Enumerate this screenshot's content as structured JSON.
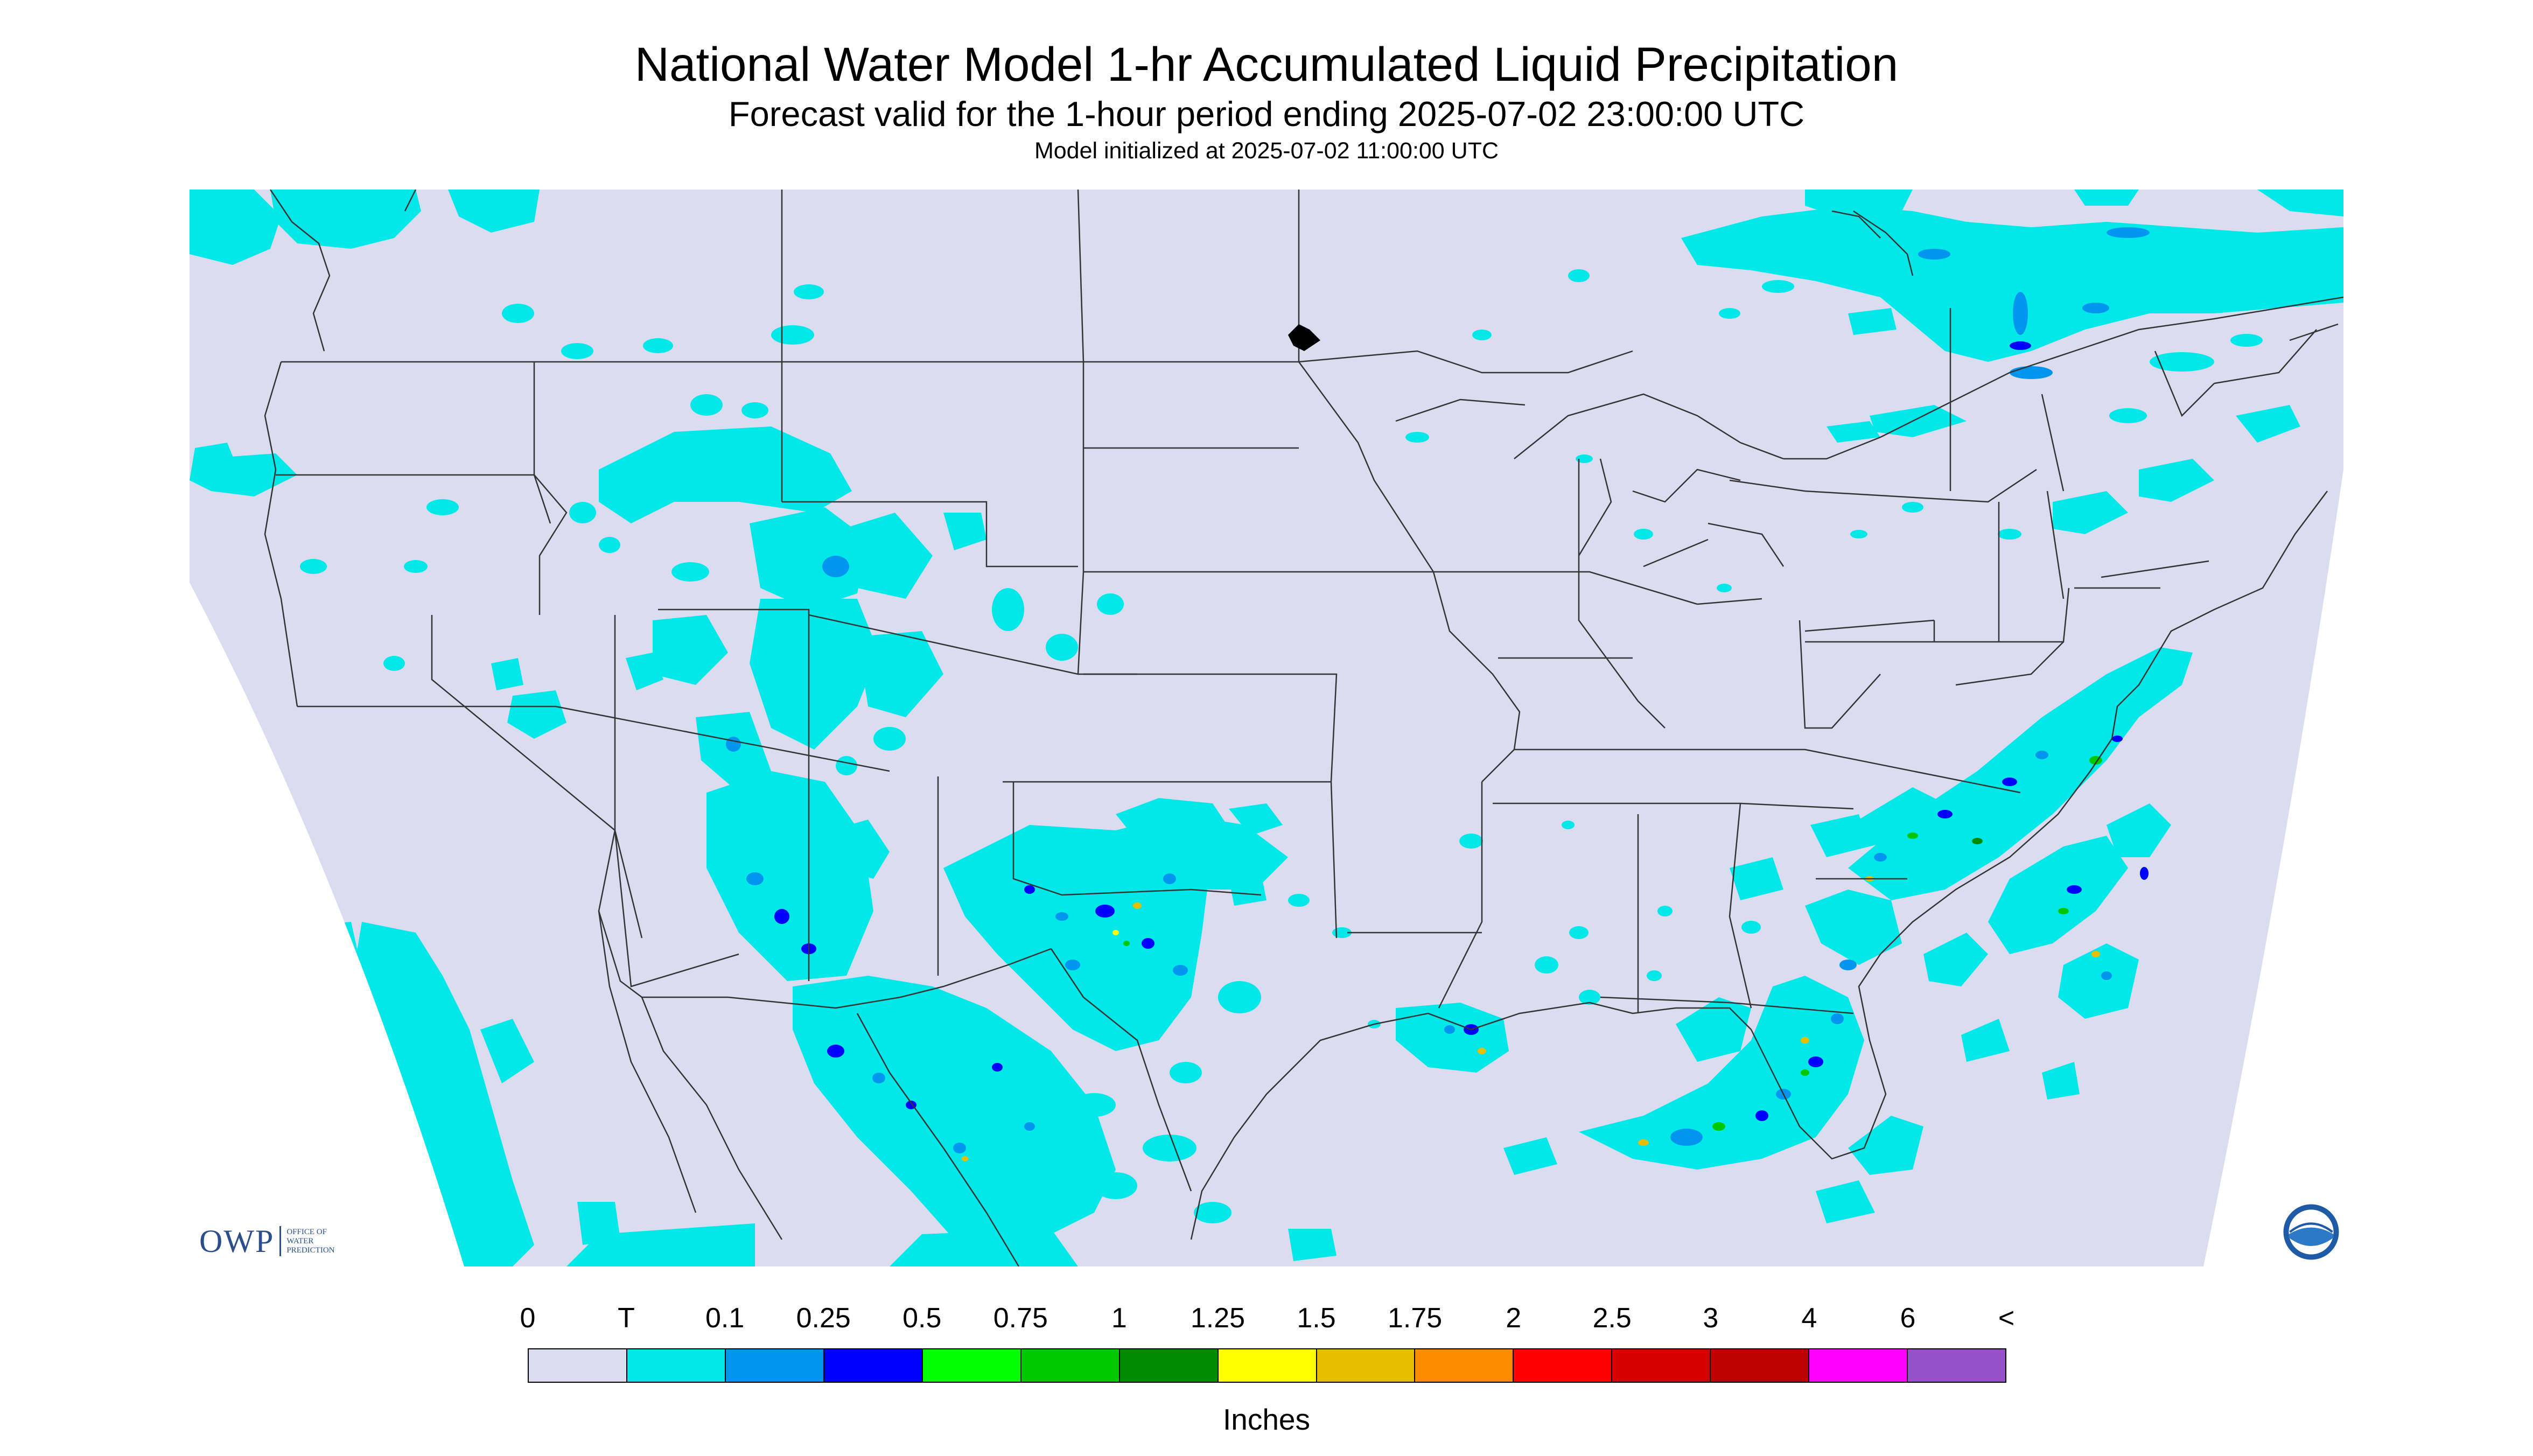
{
  "title": "National Water Model 1-hr Accumulated Liquid Precipitation",
  "subtitle": "Forecast valid for the 1-hour period ending 2025-07-02 23:00:00 UTC",
  "init_text": "Model initialized at 2025-07-02 11:00:00 UTC",
  "units_label": "Inches",
  "logos": {
    "owp_text": "OWP",
    "owp_sub": [
      "OFFICE OF",
      "WATER",
      "PREDICTION"
    ],
    "noaa_text": "NOAA"
  },
  "colors": {
    "background_domain": "#dcdcf0",
    "outside_domain": "#ffffff",
    "borders": "#333333"
  },
  "legend": {
    "labels": [
      "0",
      "T",
      "0.1",
      "0.25",
      "0.5",
      "0.75",
      "1",
      "1.25",
      "1.5",
      "1.75",
      "2",
      "2.5",
      "3",
      "4",
      "6",
      "<"
    ],
    "colors": [
      "#dcdcf0",
      "#00e8e8",
      "#0096f0",
      "#0000ff",
      "#00ff00",
      "#00c800",
      "#008c00",
      "#ffff00",
      "#e6be00",
      "#ff8c00",
      "#ff0000",
      "#d70000",
      "#be0000",
      "#ff00ff",
      "#9650c8"
    ]
  },
  "map": {
    "region": "Continental United States",
    "precip_areas": [
      {
        "name": "pacific-northwest",
        "bins": [
          "T",
          "0.1"
        ]
      },
      {
        "name": "northern-rockies-montana",
        "bins": [
          "T"
        ]
      },
      {
        "name": "great-basin-utah-colorado",
        "bins": [
          "T",
          "0.1"
        ]
      },
      {
        "name": "arizona-new-mexico",
        "bins": [
          "T",
          "0.1",
          "0.25"
        ]
      },
      {
        "name": "texas-oklahoma",
        "bins": [
          "T",
          "0.1",
          "0.25",
          "0.5",
          "1.5"
        ]
      },
      {
        "name": "northern-mexico",
        "bins": [
          "T",
          "0.1",
          "0.5",
          "1.5"
        ]
      },
      {
        "name": "baja-california-offshore",
        "bins": [
          "T"
        ]
      },
      {
        "name": "louisiana-coast",
        "bins": [
          "T",
          "0.1",
          "0.5",
          "1.5"
        ]
      },
      {
        "name": "florida-gulf",
        "bins": [
          "T",
          "0.1",
          "0.25",
          "0.5",
          "1.5"
        ]
      },
      {
        "name": "carolinas-atlantic",
        "bins": [
          "T",
          "0.1",
          "0.25",
          "0.5",
          "1",
          "1.5"
        ]
      },
      {
        "name": "southern-canada-quebec",
        "bins": [
          "T",
          "0.1",
          "0.25"
        ]
      },
      {
        "name": "new-england-maritimes",
        "bins": [
          "T"
        ]
      }
    ]
  }
}
